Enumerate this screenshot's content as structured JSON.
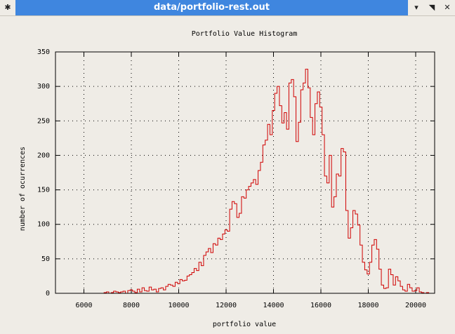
{
  "window": {
    "title": "data/portfolio-rest.out",
    "pin_glyph": "✱",
    "minimize_glyph": "▾",
    "maximize_glyph": "◥",
    "close_glyph": "✕"
  },
  "chart_data": {
    "type": "bar",
    "title": "Portfolio Value Histogram",
    "xlabel": "portfolio value",
    "ylabel": "number of ocurrences",
    "xlim": [
      4800,
      20800
    ],
    "ylim": [
      0,
      350
    ],
    "xticks": [
      6000,
      8000,
      10000,
      12000,
      14000,
      16000,
      18000,
      20000
    ],
    "yticks": [
      0,
      50,
      100,
      150,
      200,
      250,
      300,
      350
    ],
    "grid": true,
    "line_color": "#d00000",
    "bin_width": 100,
    "x": [
      6900,
      7000,
      7100,
      7200,
      7300,
      7400,
      7500,
      7600,
      7700,
      7800,
      7900,
      8000,
      8100,
      8200,
      8300,
      8400,
      8500,
      8600,
      8700,
      8800,
      8900,
      9000,
      9100,
      9200,
      9300,
      9400,
      9500,
      9600,
      9700,
      9800,
      9900,
      10000,
      10100,
      10200,
      10300,
      10400,
      10500,
      10600,
      10700,
      10800,
      10900,
      11000,
      11100,
      11200,
      11300,
      11400,
      11500,
      11600,
      11700,
      11800,
      11900,
      12000,
      12100,
      12200,
      12300,
      12400,
      12500,
      12600,
      12700,
      12800,
      12900,
      13000,
      13100,
      13200,
      13300,
      13400,
      13500,
      13600,
      13700,
      13800,
      13900,
      14000,
      14100,
      14200,
      14300,
      14400,
      14500,
      14600,
      14700,
      14800,
      14900,
      15000,
      15100,
      15200,
      15300,
      15400,
      15500,
      15600,
      15700,
      15800,
      15900,
      16000,
      16100,
      16200,
      16300,
      16400,
      16500,
      16600,
      16700,
      16800,
      16900,
      17000,
      17100,
      17200,
      17300,
      17400,
      17500,
      17600,
      17700,
      17800,
      17900,
      18000,
      18100,
      18200,
      18300,
      18400,
      18500,
      18600,
      18700,
      18800,
      18900,
      19000,
      19100,
      19200,
      19300,
      19400,
      19500,
      19600,
      19700,
      19800,
      19900,
      20000,
      20100,
      20200,
      20300,
      20400,
      20500
    ],
    "values": [
      1,
      2,
      0,
      1,
      3,
      2,
      1,
      2,
      3,
      0,
      4,
      5,
      3,
      1,
      6,
      2,
      8,
      4,
      3,
      9,
      5,
      6,
      2,
      7,
      8,
      5,
      10,
      13,
      12,
      10,
      16,
      14,
      20,
      18,
      19,
      25,
      27,
      30,
      36,
      33,
      45,
      40,
      55,
      60,
      65,
      59,
      72,
      70,
      80,
      78,
      86,
      92,
      90,
      122,
      133,
      130,
      110,
      116,
      140,
      138,
      150,
      155,
      160,
      165,
      158,
      178,
      190,
      215,
      222,
      245,
      230,
      265,
      290,
      300,
      272,
      247,
      262,
      238,
      305,
      310,
      285,
      220,
      248,
      295,
      305,
      325,
      298,
      255,
      230,
      275,
      292,
      270,
      230,
      170,
      160,
      200,
      125,
      140,
      173,
      170,
      210,
      205,
      120,
      80,
      95,
      120,
      115,
      99,
      70,
      45,
      34,
      28,
      45,
      70,
      78,
      64,
      35,
      12,
      7,
      8,
      35,
      27,
      12,
      24,
      18,
      10,
      5,
      3,
      13,
      8,
      3,
      4,
      8,
      2,
      1,
      0,
      1
    ]
  }
}
